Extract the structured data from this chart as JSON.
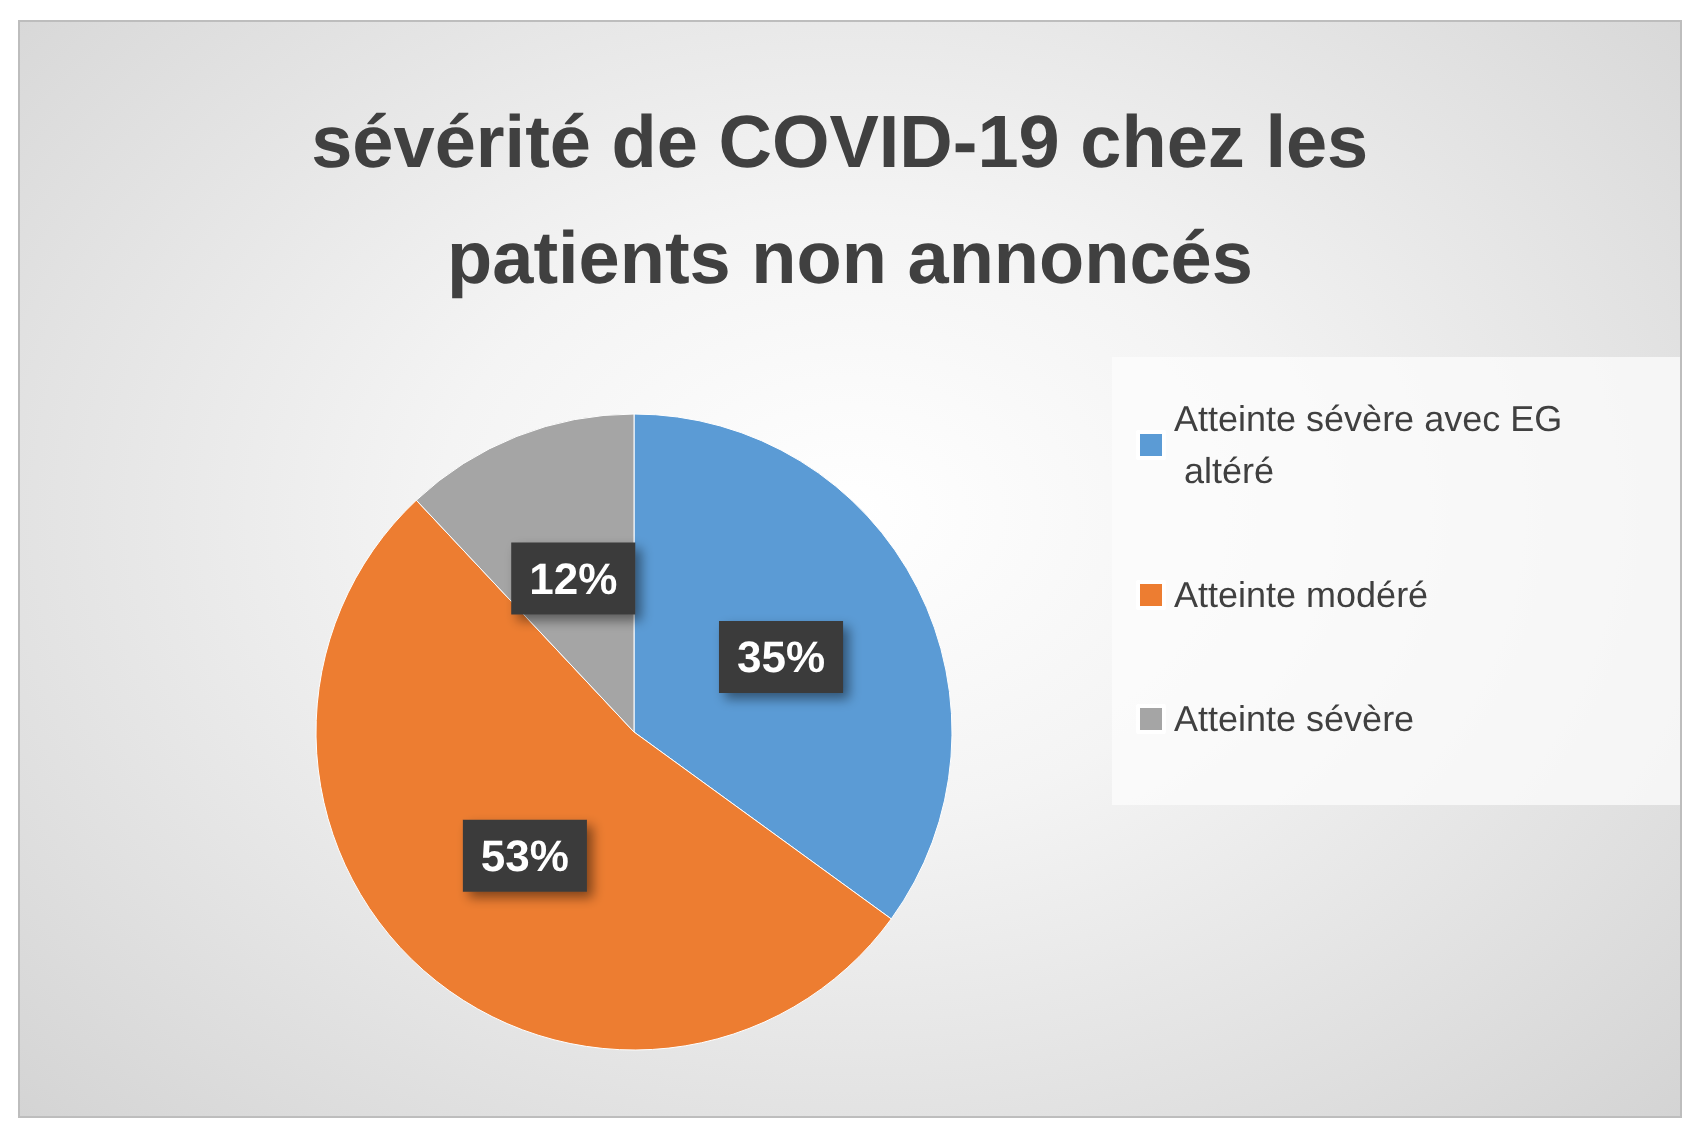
{
  "chart_data": {
    "type": "pie",
    "title": "sévérité de COVID-19 chez les patients non annoncés",
    "categories": [
      "Atteinte sévère avec EG altéré",
      "Atteinte modéré",
      "Atteinte sévère"
    ],
    "values": [
      35,
      53,
      12
    ],
    "value_labels": [
      "35%",
      "53%",
      "12%"
    ],
    "colors": [
      "#5b9bd5",
      "#ed7d31",
      "#a5a5a5"
    ],
    "legend": "right"
  }
}
